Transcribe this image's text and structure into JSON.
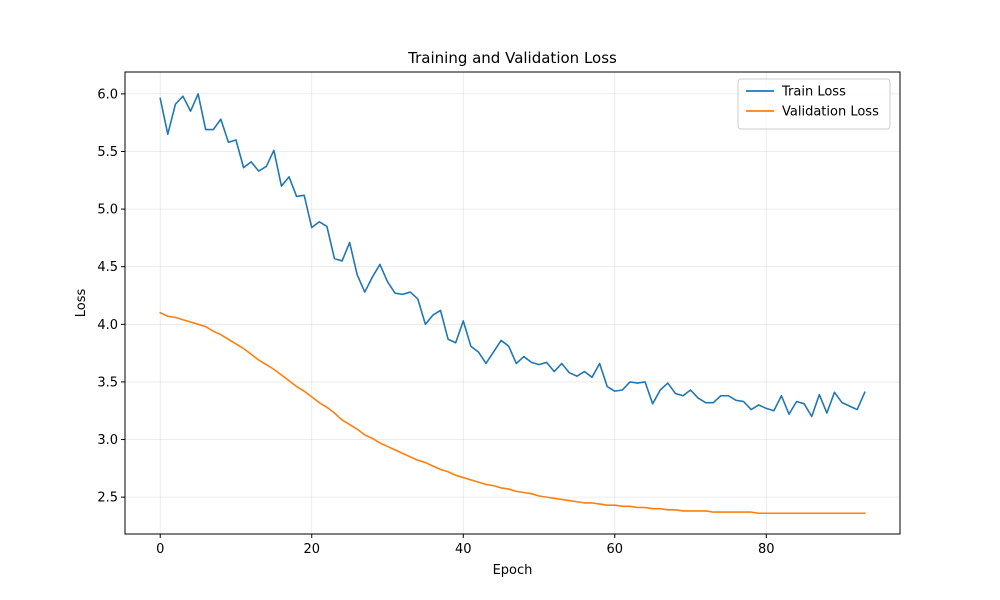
{
  "chart_data": {
    "type": "line",
    "title": "Training and Validation Loss",
    "xlabel": "Epoch",
    "ylabel": "Loss",
    "xlim": [
      -4.65,
      97.65
    ],
    "ylim": [
      2.18,
      6.19
    ],
    "xticks": [
      0,
      20,
      40,
      60,
      80
    ],
    "yticks": [
      2.5,
      3.0,
      3.5,
      4.0,
      4.5,
      5.0,
      5.5,
      6.0
    ],
    "ytick_labels": [
      "2.5",
      "3.0",
      "3.5",
      "4.0",
      "4.5",
      "5.0",
      "5.5",
      "6.0"
    ],
    "grid": true,
    "legend_position": "top-right",
    "series": [
      {
        "name": "Train Loss",
        "color": "#1f77b4",
        "values": [
          5.96,
          5.65,
          5.91,
          5.98,
          5.85,
          6.0,
          5.69,
          5.69,
          5.78,
          5.58,
          5.6,
          5.36,
          5.41,
          5.33,
          5.37,
          5.51,
          5.2,
          5.28,
          5.11,
          5.12,
          4.84,
          4.89,
          4.85,
          4.57,
          4.55,
          4.71,
          4.43,
          4.28,
          4.41,
          4.52,
          4.37,
          4.27,
          4.26,
          4.28,
          4.22,
          4.0,
          4.08,
          4.12,
          3.87,
          3.84,
          4.03,
          3.81,
          3.76,
          3.66,
          3.76,
          3.86,
          3.81,
          3.66,
          3.72,
          3.67,
          3.65,
          3.67,
          3.59,
          3.66,
          3.58,
          3.55,
          3.59,
          3.54,
          3.66,
          3.46,
          3.42,
          3.43,
          3.5,
          3.49,
          3.5,
          3.31,
          3.43,
          3.49,
          3.4,
          3.38,
          3.43,
          3.36,
          3.32,
          3.32,
          3.38,
          3.38,
          3.34,
          3.33,
          3.26,
          3.3,
          3.27,
          3.25,
          3.38,
          3.22,
          3.33,
          3.31,
          3.2,
          3.39,
          3.23,
          3.41,
          3.32,
          3.29,
          3.26,
          3.41
        ]
      },
      {
        "name": "Validation Loss",
        "color": "#ff7f0e",
        "values": [
          4.1,
          4.07,
          4.06,
          4.04,
          4.02,
          4.0,
          3.98,
          3.94,
          3.91,
          3.87,
          3.83,
          3.79,
          3.74,
          3.69,
          3.65,
          3.61,
          3.56,
          3.51,
          3.46,
          3.42,
          3.37,
          3.32,
          3.28,
          3.23,
          3.17,
          3.13,
          3.09,
          3.04,
          3.01,
          2.97,
          2.94,
          2.91,
          2.88,
          2.85,
          2.82,
          2.8,
          2.77,
          2.74,
          2.72,
          2.69,
          2.67,
          2.65,
          2.63,
          2.61,
          2.6,
          2.58,
          2.57,
          2.55,
          2.54,
          2.53,
          2.51,
          2.5,
          2.49,
          2.48,
          2.47,
          2.46,
          2.45,
          2.45,
          2.44,
          2.43,
          2.43,
          2.42,
          2.42,
          2.41,
          2.41,
          2.4,
          2.4,
          2.39,
          2.39,
          2.38,
          2.38,
          2.38,
          2.38,
          2.37,
          2.37,
          2.37,
          2.37,
          2.37,
          2.37,
          2.36,
          2.36,
          2.36,
          2.36,
          2.36,
          2.36,
          2.36,
          2.36,
          2.36,
          2.36,
          2.36,
          2.36,
          2.36,
          2.36,
          2.36
        ]
      }
    ]
  }
}
